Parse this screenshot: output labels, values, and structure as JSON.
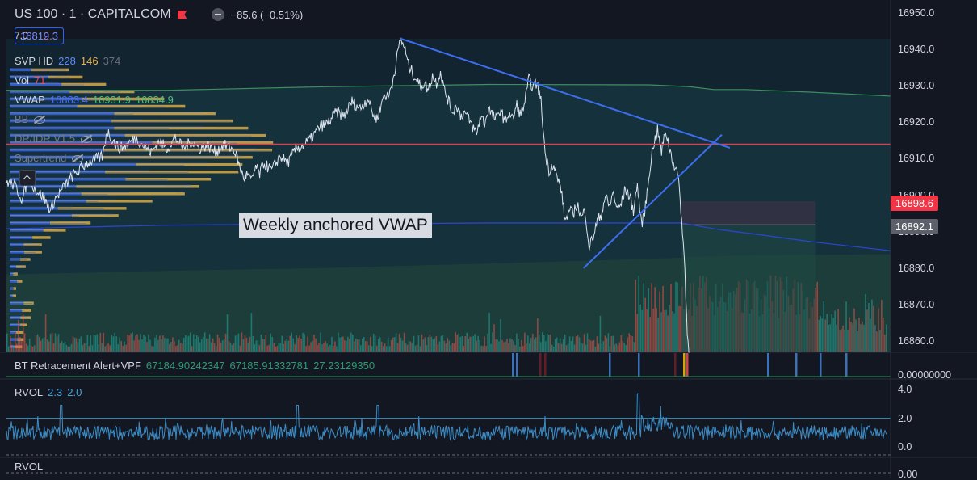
{
  "header": {
    "symbol": "US 100 · 1 · CAPITALCOM",
    "change": "−85.6 (−0.51%)",
    "bid": "16812.3",
    "spread": "7.0",
    "ask": "16819.3"
  },
  "indicators": {
    "svp": {
      "label": "SVP HD",
      "v1": "228",
      "v2": "146",
      "v3": "374"
    },
    "vol": {
      "label": "Vol",
      "v1": "71"
    },
    "vwap": {
      "label": "VWAP",
      "v1": "16883.4",
      "v2": "16931.9",
      "v3": "16834.9"
    },
    "bb": {
      "label": "BB"
    },
    "dridr": {
      "label": "DR/IDR V1.5"
    },
    "supertrend": {
      "label": "Supertrend"
    }
  },
  "annotation": {
    "text": "Weekly anchored VWAP"
  },
  "price_axis": {
    "labels": [
      "16950.0",
      "16940.0",
      "16930.0",
      "16920.0",
      "16910.0",
      "16900.0",
      "16890.0",
      "16880.0",
      "16870.0",
      "16860.0"
    ],
    "tag_red": "16898.6",
    "tag_gray": "16892.1"
  },
  "pane2": {
    "title": "BT Retracement Alert+VPF",
    "v1": "67184.90242347",
    "v2": "67185.91332781",
    "v3": "27.23129350",
    "axis_label": "0.00000000"
  },
  "pane3": {
    "title": "RVOL",
    "v1": "2.3",
    "v2": "2.0",
    "axis_labels": [
      "4.0",
      "2.0",
      "0.0"
    ]
  },
  "pane4": {
    "title": "RVOL",
    "axis_label": "0.00"
  },
  "colors": {
    "background": "#131722",
    "price_line": "#dbe4ee",
    "trendline": "#2962ff",
    "horizontal_level": "#f23645",
    "vwap": "#2a45c8",
    "bid": "#f23645",
    "ask": "#2962ff",
    "up": "#26a69a",
    "down": "#ef5350",
    "profile_up": "#d4a94a",
    "profile_down": "#2f5fd8"
  },
  "chart_data": {
    "type": "line",
    "ylim": [
      16857,
      16951
    ],
    "horizontal_level": 16914.2,
    "xlim": [
      0,
      1100
    ],
    "price": [
      [
        0,
        16904
      ],
      [
        10,
        16903
      ],
      [
        20,
        16899
      ],
      [
        28,
        16906
      ],
      [
        35,
        16902
      ],
      [
        45,
        16900
      ],
      [
        55,
        16896
      ],
      [
        60,
        16899
      ],
      [
        70,
        16902
      ],
      [
        80,
        16905
      ],
      [
        90,
        16907
      ],
      [
        100,
        16909
      ],
      [
        110,
        16910
      ],
      [
        120,
        16911
      ],
      [
        125,
        16918
      ],
      [
        130,
        16916
      ],
      [
        140,
        16913
      ],
      [
        150,
        16914
      ],
      [
        160,
        16916
      ],
      [
        170,
        16914
      ],
      [
        180,
        16912
      ],
      [
        190,
        16915
      ],
      [
        200,
        16913
      ],
      [
        210,
        16916
      ],
      [
        220,
        16913
      ],
      [
        230,
        16915
      ],
      [
        240,
        16913
      ],
      [
        250,
        16914
      ],
      [
        260,
        16912
      ],
      [
        270,
        16914
      ],
      [
        280,
        16913
      ],
      [
        285,
        16912
      ],
      [
        290,
        16908
      ],
      [
        295,
        16905
      ],
      [
        300,
        16906
      ],
      [
        305,
        16904
      ],
      [
        310,
        16908
      ],
      [
        315,
        16906
      ],
      [
        320,
        16909
      ],
      [
        330,
        16907
      ],
      [
        340,
        16911
      ],
      [
        350,
        16909
      ],
      [
        360,
        16913
      ],
      [
        370,
        16914
      ],
      [
        380,
        16916
      ],
      [
        390,
        16919
      ],
      [
        400,
        16920
      ],
      [
        410,
        16923
      ],
      [
        420,
        16922
      ],
      [
        430,
        16926
      ],
      [
        440,
        16924
      ],
      [
        450,
        16927
      ],
      [
        455,
        16923
      ],
      [
        460,
        16921
      ],
      [
        465,
        16924
      ],
      [
        470,
        16928
      ],
      [
        475,
        16927
      ],
      [
        480,
        16931
      ],
      [
        485,
        16937
      ],
      [
        490,
        16943
      ],
      [
        495,
        16941
      ],
      [
        500,
        16936
      ],
      [
        505,
        16934
      ],
      [
        510,
        16932
      ],
      [
        515,
        16930
      ],
      [
        520,
        16931
      ],
      [
        525,
        16929
      ],
      [
        530,
        16933
      ],
      [
        535,
        16931
      ],
      [
        540,
        16934
      ],
      [
        545,
        16929
      ],
      [
        550,
        16926
      ],
      [
        555,
        16923
      ],
      [
        560,
        16925
      ],
      [
        565,
        16922
      ],
      [
        570,
        16923
      ],
      [
        575,
        16921
      ],
      [
        580,
        16919
      ],
      [
        585,
        16917
      ],
      [
        590,
        16922
      ],
      [
        595,
        16920
      ],
      [
        600,
        16924
      ],
      [
        605,
        16922
      ],
      [
        610,
        16921
      ],
      [
        615,
        16924
      ],
      [
        620,
        16920
      ],
      [
        625,
        16923
      ],
      [
        630,
        16921
      ],
      [
        635,
        16925
      ],
      [
        640,
        16922
      ],
      [
        645,
        16926
      ],
      [
        650,
        16932
      ],
      [
        655,
        16930
      ],
      [
        660,
        16931
      ],
      [
        665,
        16926
      ],
      [
        670,
        16912
      ],
      [
        675,
        16907
      ],
      [
        680,
        16909
      ],
      [
        685,
        16905
      ],
      [
        690,
        16902
      ],
      [
        695,
        16893
      ],
      [
        700,
        16896
      ],
      [
        705,
        16895
      ],
      [
        710,
        16898
      ],
      [
        715,
        16894
      ],
      [
        720,
        16896
      ],
      [
        725,
        16886
      ],
      [
        730,
        16889
      ],
      [
        735,
        16893
      ],
      [
        740,
        16895
      ],
      [
        745,
        16900
      ],
      [
        750,
        16897
      ],
      [
        755,
        16901
      ],
      [
        760,
        16896
      ],
      [
        765,
        16898
      ],
      [
        770,
        16902
      ],
      [
        775,
        16900
      ],
      [
        780,
        16896
      ],
      [
        785,
        16903
      ],
      [
        790,
        16892
      ],
      [
        795,
        16897
      ],
      [
        800,
        16907
      ],
      [
        805,
        16914
      ],
      [
        810,
        16918
      ],
      [
        815,
        16912
      ],
      [
        820,
        16918
      ],
      [
        825,
        16913
      ],
      [
        830,
        16909
      ],
      [
        835,
        16906
      ],
      [
        838,
        16900
      ],
      [
        841,
        16890
      ],
      [
        844,
        16880
      ],
      [
        847,
        16862
      ],
      [
        850,
        16856
      ]
    ],
    "trendlines": [
      {
        "x1": 490,
        "y1": 16943.2,
        "x2": 900,
        "y2": 16913.2
      },
      {
        "x1": 718,
        "y1": 16880.2,
        "x2": 890,
        "y2": 16916.8
      }
    ],
    "vwap_bands": {
      "upper": [
        [
          0,
          16929
        ],
        [
          200,
          16929
        ],
        [
          400,
          16930
        ],
        [
          600,
          16930.6
        ],
        [
          800,
          16930.5
        ],
        [
          850,
          16930
        ],
        [
          880,
          16929.2
        ],
        [
          920,
          16929.2
        ],
        [
          1000,
          16928.5
        ],
        [
          1100,
          16927.4
        ]
      ],
      "mid": [
        [
          0,
          16891
        ],
        [
          200,
          16892
        ],
        [
          400,
          16892.3
        ],
        [
          600,
          16892.6
        ],
        [
          800,
          16892.6
        ],
        [
          840,
          16892.6
        ],
        [
          880,
          16891
        ],
        [
          950,
          16889
        ],
        [
          1000,
          16887.5
        ],
        [
          1100,
          16885
        ]
      ],
      "lower": [
        [
          0,
          16878.5
        ],
        [
          200,
          16879.5
        ],
        [
          400,
          16880.3
        ],
        [
          600,
          16881.5
        ],
        [
          800,
          16882.8
        ],
        [
          900,
          16883.6
        ],
        [
          1000,
          16883.9
        ],
        [
          1100,
          16884.1
        ]
      ]
    },
    "dr_box": {
      "x1": 840,
      "x2": 1006,
      "top": 16898.6,
      "mid": 16892.1,
      "bottom": 16856
    },
    "rvol": {
      "range": [
        0,
        4
      ],
      "threshold": 2.0,
      "base": 0.5
    },
    "profile_levels": [
      16858,
      16860,
      16862,
      16864,
      16866,
      16868,
      16870,
      16872,
      16874,
      16876,
      16878,
      16880,
      16882,
      16884,
      16886,
      16888,
      16890,
      16892,
      16894,
      16896,
      16898,
      16900,
      16902,
      16904,
      16906,
      16908,
      16910,
      16912,
      16914,
      16916,
      16918,
      16920,
      16922,
      16924,
      16926,
      16928,
      16930,
      16932,
      16934
    ]
  }
}
